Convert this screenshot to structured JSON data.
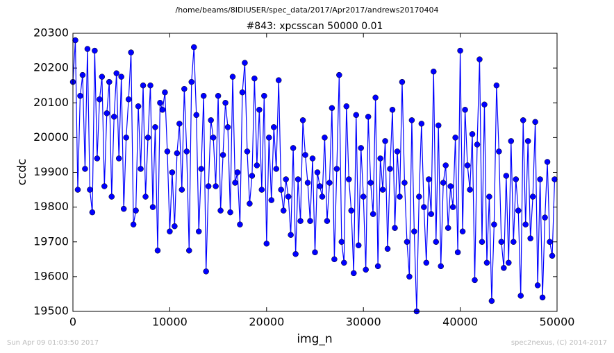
{
  "chart_data": {
    "type": "line",
    "suptitle": "/home/beams/8IDIUSER/spec_data/2017/Apr2017/andrews20170404",
    "title": "#843: xpcsscan 50000 0.01",
    "xlabel": "img_n",
    "ylabel": "ccdc",
    "footer_left": "Sun Apr 09 01:03:50 2017",
    "footer_right": "spec2nexus, (C) 2014-2017",
    "color": "#0000ff",
    "xlim": [
      0,
      50000
    ],
    "xticks": [
      0,
      10000,
      20000,
      30000,
      40000,
      50000
    ],
    "ylim": [
      19500,
      20300
    ],
    "yticks": [
      19500,
      19600,
      19700,
      19800,
      19900,
      20000,
      20100,
      20200,
      20300
    ],
    "x": [
      0,
      250,
      500,
      750,
      1000,
      1250,
      1500,
      1750,
      2000,
      2250,
      2500,
      2750,
      3000,
      3250,
      3500,
      3750,
      4000,
      4250,
      4500,
      4750,
      5000,
      5250,
      5500,
      5750,
      6000,
      6250,
      6500,
      6750,
      7000,
      7250,
      7500,
      7750,
      8000,
      8250,
      8500,
      8750,
      9000,
      9250,
      9500,
      9750,
      10000,
      10250,
      10500,
      10750,
      11000,
      11250,
      11500,
      11750,
      12000,
      12250,
      12500,
      12750,
      13000,
      13250,
      13500,
      13750,
      14000,
      14250,
      14500,
      14750,
      15000,
      15250,
      15500,
      15750,
      16000,
      16250,
      16500,
      16750,
      17000,
      17250,
      17500,
      17750,
      18000,
      18250,
      18500,
      18750,
      19000,
      19250,
      19500,
      19750,
      20000,
      20250,
      20500,
      20750,
      21000,
      21250,
      21500,
      21750,
      22000,
      22250,
      22500,
      22750,
      23000,
      23250,
      23500,
      23750,
      24000,
      24250,
      24500,
      24750,
      25000,
      25250,
      25500,
      25750,
      26000,
      26250,
      26500,
      26750,
      27000,
      27250,
      27500,
      27750,
      28000,
      28250,
      28500,
      28750,
      29000,
      29250,
      29500,
      29750,
      30000,
      30250,
      30500,
      30750,
      31000,
      31250,
      31500,
      31750,
      32000,
      32250,
      32500,
      32750,
      33000,
      33250,
      33500,
      33750,
      34000,
      34250,
      34500,
      34750,
      35000,
      35250,
      35500,
      35750,
      36000,
      36250,
      36500,
      36750,
      37000,
      37250,
      37500,
      37750,
      38000,
      38250,
      38500,
      38750,
      39000,
      39250,
      39500,
      39750,
      40000,
      40250,
      40500,
      40750,
      41000,
      41250,
      41500,
      41750,
      42000,
      42250,
      42500,
      42750,
      43000,
      43250,
      43500,
      43750,
      44000,
      44250,
      44500,
      44750,
      45000,
      45250,
      45500,
      45750,
      46000,
      46250,
      46500,
      46750,
      47000,
      47250,
      47500,
      47750,
      48000,
      48250,
      48500,
      48750,
      49000,
      49250,
      49500,
      49750
    ],
    "values": [
      20160,
      20280,
      19850,
      20120,
      20180,
      19910,
      20255,
      19850,
      19785,
      20250,
      19940,
      20110,
      20175,
      19860,
      20070,
      20160,
      19830,
      20060,
      20185,
      19940,
      20175,
      19795,
      20000,
      20110,
      20245,
      19750,
      19790,
      20090,
      19910,
      20150,
      19830,
      20000,
      20150,
      19800,
      20030,
      19675,
      20100,
      20080,
      20130,
      19960,
      19730,
      19900,
      19745,
      19955,
      20040,
      19850,
      20140,
      19960,
      19675,
      20160,
      20260,
      20065,
      19730,
      19910,
      20120,
      19615,
      19860,
      20050,
      20000,
      19860,
      20120,
      19790,
      19950,
      20100,
      20030,
      19785,
      20175,
      19870,
      19900,
      19750,
      20130,
      20215,
      19960,
      19810,
      19890,
      20170,
      19920,
      20080,
      19850,
      20120,
      19695,
      20000,
      19820,
      20030,
      19910,
      20165,
      19850,
      19790,
      19880,
      19830,
      19720,
      19970,
      19665,
      19880,
      19760,
      20050,
      19950,
      19870,
      19760,
      19940,
      19670,
      19900,
      19860,
      19830,
      20000,
      19760,
      19870,
      20085,
      19650,
      19910,
      20180,
      19700,
      19640,
      20090,
      19880,
      19790,
      19610,
      20065,
      19690,
      19970,
      19830,
      19620,
      20060,
      19870,
      19780,
      20115,
      19630,
      19940,
      19850,
      19990,
      19680,
      19910,
      20080,
      19740,
      19960,
      19830,
      20160,
      19870,
      19700,
      19600,
      20050,
      19730,
      19500,
      19830,
      20040,
      19800,
      19640,
      19880,
      19780,
      20190,
      19700,
      20035,
      19630,
      19870,
      19920,
      19740,
      19860,
      19800,
      20000,
      19670,
      20250,
      19730,
      20080,
      19920,
      19850,
      20010,
      19590,
      19980,
      20225,
      19700,
      20095,
      19640,
      19830,
      19530,
      19750,
      20150,
      19960,
      19700,
      19625,
      19890,
      19640,
      19990,
      19700,
      19880,
      19790,
      19545,
      20050,
      19750,
      19990,
      19710,
      19830,
      20045,
      19575,
      19880,
      19540,
      19770,
      19930,
      19700,
      19660,
      19880
    ]
  }
}
